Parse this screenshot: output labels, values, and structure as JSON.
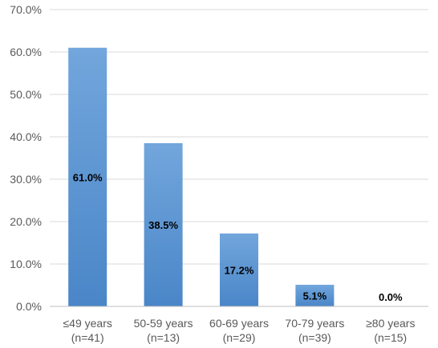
{
  "chart_data": {
    "type": "bar",
    "categories": [
      [
        "≤49 years",
        "(n=41)"
      ],
      [
        "50-59 years",
        "(n=13)"
      ],
      [
        "60-69 years",
        "(n=29)"
      ],
      [
        "70-79 years",
        "(n=39)"
      ],
      [
        "≥80 years",
        "(n=15)"
      ]
    ],
    "values": [
      61.0,
      38.5,
      17.2,
      5.1,
      0.0
    ],
    "data_labels": [
      "61.0%",
      "38.5%",
      "17.2%",
      "5.1%",
      "0.0%"
    ],
    "ylim": [
      0,
      70
    ],
    "yticks": [
      0,
      10,
      20,
      30,
      40,
      50,
      60,
      70
    ],
    "ytick_labels": [
      "0.0%",
      "10.0%",
      "20.0%",
      "30.0%",
      "40.0%",
      "50.0%",
      "60.0%",
      "70.0%"
    ],
    "grid": true,
    "title": "",
    "xlabel": "",
    "ylabel": "",
    "colors": {
      "bar_top": "#72a6dc",
      "bar_bottom": "#4a86c8",
      "gridline": "#d9d9d9",
      "axis": "#bfbfbf"
    }
  }
}
